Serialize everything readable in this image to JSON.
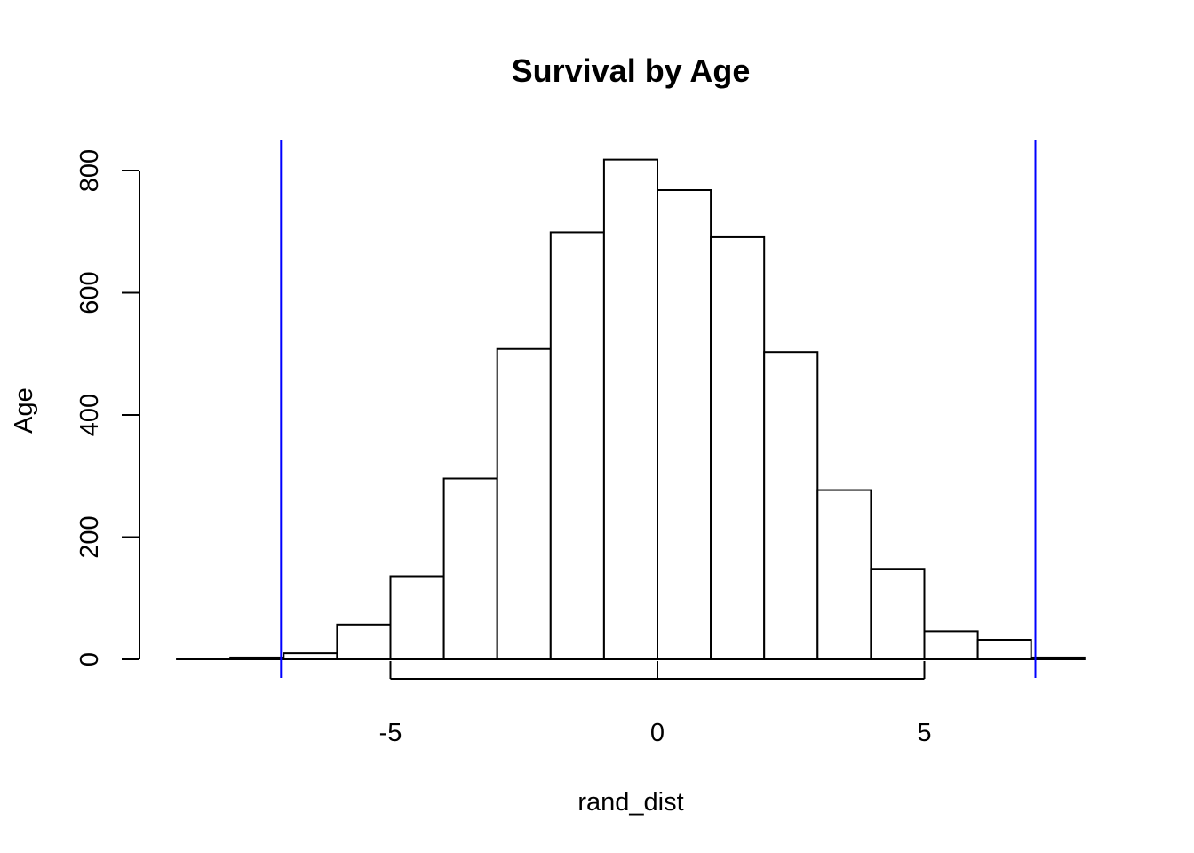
{
  "chart_data": {
    "type": "bar",
    "title": "Survival by Age",
    "xlabel": "rand_dist",
    "ylabel": "Age",
    "xlim": [
      -9,
      8
    ],
    "ylim": [
      0,
      800
    ],
    "bins": [
      {
        "x0": -9,
        "x1": -8,
        "count": 1
      },
      {
        "x0": -8,
        "x1": -7,
        "count": 3
      },
      {
        "x0": -7,
        "x1": -6,
        "count": 10
      },
      {
        "x0": -6,
        "x1": -5,
        "count": 57
      },
      {
        "x0": -5,
        "x1": -4,
        "count": 136
      },
      {
        "x0": -4,
        "x1": -3,
        "count": 296
      },
      {
        "x0": -3,
        "x1": -2,
        "count": 508
      },
      {
        "x0": -2,
        "x1": -1,
        "count": 699
      },
      {
        "x0": -1,
        "x1": 0,
        "count": 818
      },
      {
        "x0": 0,
        "x1": 1,
        "count": 768
      },
      {
        "x0": 1,
        "x1": 2,
        "count": 691
      },
      {
        "x0": 2,
        "x1": 3,
        "count": 503
      },
      {
        "x0": 3,
        "x1": 4,
        "count": 277
      },
      {
        "x0": 4,
        "x1": 5,
        "count": 148
      },
      {
        "x0": 5,
        "x1": 6,
        "count": 46
      },
      {
        "x0": 6,
        "x1": 7,
        "count": 32
      },
      {
        "x0": 7,
        "x1": 8,
        "count": 3
      }
    ],
    "x_ticks": [
      -5,
      0,
      5
    ],
    "y_ticks": [
      0,
      200,
      400,
      600,
      800
    ],
    "vlines": [
      {
        "x": -7.05,
        "color": "#0000ff"
      },
      {
        "x": 7.08,
        "color": "#0000ff"
      }
    ],
    "grid": false,
    "legend": "none"
  }
}
